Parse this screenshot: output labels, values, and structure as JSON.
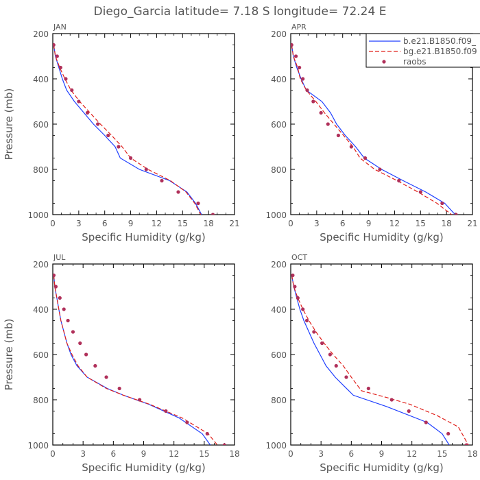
{
  "title": "Diego_Garcia  latitude= 7.18 S longitude= 72.24 E",
  "colors": {
    "model_b": "#1f3fff",
    "model_bg": "#e0201b",
    "raobs": "#b0305a",
    "text": "#555555"
  },
  "legend": {
    "items": [
      {
        "label": "b.e21.B1850.f09_",
        "style": "solid"
      },
      {
        "label": "bg.e21.B1850.f09",
        "style": "dashed"
      },
      {
        "label": "raobs",
        "style": "dot"
      }
    ]
  },
  "chart_data": [
    {
      "type": "line",
      "panel": "JAN",
      "title": "JAN",
      "xlabel": "Specific Humidity (g/kg)",
      "ylabel": "Pressure (mb)",
      "xlim": [
        0,
        21
      ],
      "ylim": [
        1000,
        200
      ],
      "xticks": [
        0,
        3,
        6,
        9,
        12,
        15,
        18,
        21
      ],
      "yticks": [
        200,
        400,
        600,
        800,
        1000
      ],
      "series": [
        {
          "name": "b.e21.B1850.f09_",
          "style": "solid",
          "points": [
            [
              0.1,
              250
            ],
            [
              0.3,
              300
            ],
            [
              0.7,
              350
            ],
            [
              1.1,
              400
            ],
            [
              1.6,
              450
            ],
            [
              2.5,
              500
            ],
            [
              3.6,
              550
            ],
            [
              4.7,
              600
            ],
            [
              6.0,
              650
            ],
            [
              7.2,
              700
            ],
            [
              7.8,
              750
            ],
            [
              10.0,
              800
            ],
            [
              13.5,
              850
            ],
            [
              15.5,
              900
            ],
            [
              16.5,
              950
            ],
            [
              17.2,
              1000
            ]
          ]
        },
        {
          "name": "bg.e21.B1850.f09",
          "style": "dashed",
          "points": [
            [
              0.1,
              250
            ],
            [
              0.3,
              300
            ],
            [
              0.8,
              350
            ],
            [
              1.4,
              400
            ],
            [
              2.1,
              450
            ],
            [
              3.1,
              500
            ],
            [
              4.3,
              550
            ],
            [
              5.5,
              600
            ],
            [
              6.8,
              650
            ],
            [
              8.0,
              700
            ],
            [
              9.0,
              750
            ],
            [
              11.0,
              800
            ],
            [
              13.6,
              850
            ],
            [
              15.4,
              900
            ],
            [
              16.4,
              950
            ],
            [
              17.1,
              1000
            ]
          ]
        },
        {
          "name": "raobs",
          "style": "dot",
          "points": [
            [
              0.1,
              250
            ],
            [
              0.5,
              300
            ],
            [
              0.9,
              350
            ],
            [
              1.5,
              400
            ],
            [
              2.2,
              450
            ],
            [
              3.0,
              500
            ],
            [
              4.0,
              550
            ],
            [
              5.2,
              600
            ],
            [
              6.4,
              650
            ],
            [
              7.6,
              700
            ],
            [
              9.0,
              750
            ],
            [
              10.8,
              800
            ],
            [
              12.6,
              850
            ],
            [
              14.5,
              900
            ],
            [
              16.8,
              950
            ],
            [
              18.5,
              1000
            ]
          ]
        }
      ]
    },
    {
      "type": "line",
      "panel": "APR",
      "title": "APR",
      "xlabel": "Specific Humidity (g/kg)",
      "ylabel": "",
      "xlim": [
        0,
        21
      ],
      "ylim": [
        1000,
        200
      ],
      "xticks": [
        0,
        3,
        6,
        9,
        12,
        15,
        18,
        21
      ],
      "yticks": [
        200,
        400,
        600,
        800,
        1000
      ],
      "series": [
        {
          "name": "b.e21.B1850.f09_",
          "style": "solid",
          "points": [
            [
              0.1,
              250
            ],
            [
              0.3,
              300
            ],
            [
              0.7,
              350
            ],
            [
              1.2,
              400
            ],
            [
              1.8,
              450
            ],
            [
              3.6,
              500
            ],
            [
              4.6,
              550
            ],
            [
              5.3,
              600
            ],
            [
              6.3,
              650
            ],
            [
              7.5,
              700
            ],
            [
              8.5,
              750
            ],
            [
              10.5,
              800
            ],
            [
              13.0,
              850
            ],
            [
              15.6,
              900
            ],
            [
              17.8,
              950
            ],
            [
              19.0,
              1000
            ]
          ]
        },
        {
          "name": "bg.e21.B1850.f09",
          "style": "dashed",
          "points": [
            [
              0.1,
              250
            ],
            [
              0.3,
              300
            ],
            [
              0.8,
              350
            ],
            [
              1.1,
              400
            ],
            [
              1.8,
              450
            ],
            [
              2.9,
              500
            ],
            [
              3.9,
              550
            ],
            [
              5.0,
              600
            ],
            [
              6.1,
              650
            ],
            [
              7.2,
              700
            ],
            [
              8.0,
              750
            ],
            [
              9.7,
              800
            ],
            [
              12.3,
              850
            ],
            [
              14.7,
              900
            ],
            [
              16.9,
              950
            ],
            [
              18.6,
              1000
            ]
          ]
        },
        {
          "name": "raobs",
          "style": "dot",
          "points": [
            [
              0.1,
              250
            ],
            [
              0.6,
              300
            ],
            [
              1.0,
              350
            ],
            [
              1.4,
              400
            ],
            [
              1.9,
              450
            ],
            [
              2.6,
              500
            ],
            [
              3.5,
              550
            ],
            [
              4.3,
              600
            ],
            [
              5.5,
              650
            ],
            [
              7.0,
              700
            ],
            [
              8.6,
              750
            ],
            [
              10.3,
              800
            ],
            [
              12.5,
              850
            ],
            [
              15.0,
              900
            ],
            [
              17.5,
              950
            ],
            [
              19.1,
              1000
            ]
          ]
        }
      ]
    },
    {
      "type": "line",
      "panel": "JUL",
      "title": "JUL",
      "xlabel": "Specific Humidity (g/kg)",
      "ylabel": "Pressure (mb)",
      "xlim": [
        0,
        18
      ],
      "ylim": [
        1000,
        200
      ],
      "xticks": [
        0,
        3,
        6,
        9,
        12,
        15,
        18
      ],
      "yticks": [
        200,
        400,
        600,
        800,
        1000
      ],
      "series": [
        {
          "name": "b.e21.B1850.f09_",
          "style": "solid",
          "points": [
            [
              0.1,
              250
            ],
            [
              0.2,
              300
            ],
            [
              0.4,
              350
            ],
            [
              0.6,
              400
            ],
            [
              0.8,
              450
            ],
            [
              1.1,
              500
            ],
            [
              1.4,
              550
            ],
            [
              1.8,
              600
            ],
            [
              2.4,
              650
            ],
            [
              3.4,
              700
            ],
            [
              5.4,
              750
            ],
            [
              7.0,
              780
            ],
            [
              9.5,
              820
            ],
            [
              12.5,
              880
            ],
            [
              14.8,
              950
            ],
            [
              15.6,
              1000
            ]
          ]
        },
        {
          "name": "bg.e21.B1850.f09",
          "style": "dashed",
          "points": [
            [
              0.1,
              250
            ],
            [
              0.2,
              300
            ],
            [
              0.4,
              350
            ],
            [
              0.6,
              400
            ],
            [
              0.8,
              450
            ],
            [
              1.1,
              500
            ],
            [
              1.4,
              550
            ],
            [
              1.9,
              600
            ],
            [
              2.5,
              650
            ],
            [
              3.4,
              700
            ],
            [
              5.3,
              750
            ],
            [
              7.0,
              780
            ],
            [
              9.6,
              820
            ],
            [
              12.8,
              880
            ],
            [
              15.4,
              950
            ],
            [
              16.3,
              1000
            ]
          ]
        },
        {
          "name": "raobs",
          "style": "dot",
          "points": [
            [
              0.1,
              250
            ],
            [
              0.3,
              300
            ],
            [
              0.7,
              350
            ],
            [
              1.1,
              400
            ],
            [
              1.5,
              450
            ],
            [
              2.0,
              500
            ],
            [
              2.7,
              550
            ],
            [
              3.3,
              600
            ],
            [
              4.2,
              650
            ],
            [
              5.3,
              700
            ],
            [
              6.6,
              750
            ],
            [
              8.6,
              800
            ],
            [
              11.2,
              850
            ],
            [
              13.3,
              900
            ],
            [
              15.3,
              950
            ],
            [
              17.0,
              1000
            ]
          ]
        }
      ]
    },
    {
      "type": "line",
      "panel": "OCT",
      "title": "OCT",
      "xlabel": "Specific Humidity (g/kg)",
      "ylabel": "",
      "xlim": [
        0,
        18
      ],
      "ylim": [
        1000,
        200
      ],
      "xticks": [
        0,
        3,
        6,
        9,
        12,
        15,
        18
      ],
      "yticks": [
        200,
        400,
        600,
        800,
        1000
      ],
      "series": [
        {
          "name": "b.e21.B1850.f09_",
          "style": "solid",
          "points": [
            [
              0.1,
              250
            ],
            [
              0.3,
              300
            ],
            [
              0.6,
              350
            ],
            [
              0.9,
              400
            ],
            [
              1.3,
              450
            ],
            [
              1.8,
              500
            ],
            [
              2.3,
              550
            ],
            [
              2.9,
              600
            ],
            [
              3.5,
              650
            ],
            [
              4.4,
              700
            ],
            [
              5.3,
              740
            ],
            [
              6.2,
              780
            ],
            [
              9.5,
              830
            ],
            [
              13.5,
              900
            ],
            [
              15.0,
              950
            ],
            [
              15.7,
              1000
            ]
          ]
        },
        {
          "name": "bg.e21.B1850.f09",
          "style": "dashed",
          "points": [
            [
              0.1,
              250
            ],
            [
              0.3,
              300
            ],
            [
              0.7,
              350
            ],
            [
              1.2,
              400
            ],
            [
              1.8,
              450
            ],
            [
              2.5,
              500
            ],
            [
              3.3,
              550
            ],
            [
              4.2,
              600
            ],
            [
              5.2,
              650
            ],
            [
              6.0,
              700
            ],
            [
              7.0,
              760
            ],
            [
              9.5,
              790
            ],
            [
              11.8,
              820
            ],
            [
              14.5,
              870
            ],
            [
              16.6,
              920
            ],
            [
              17.6,
              1000
            ]
          ]
        },
        {
          "name": "raobs",
          "style": "dot",
          "points": [
            [
              0.2,
              250
            ],
            [
              0.4,
              300
            ],
            [
              0.7,
              350
            ],
            [
              1.2,
              400
            ],
            [
              1.6,
              450
            ],
            [
              2.3,
              500
            ],
            [
              3.1,
              550
            ],
            [
              3.9,
              600
            ],
            [
              4.5,
              650
            ],
            [
              5.5,
              700
            ],
            [
              7.7,
              750
            ],
            [
              10.0,
              800
            ],
            [
              11.7,
              850
            ],
            [
              13.4,
              900
            ],
            [
              15.6,
              950
            ],
            [
              17.4,
              1000
            ]
          ]
        }
      ]
    }
  ]
}
